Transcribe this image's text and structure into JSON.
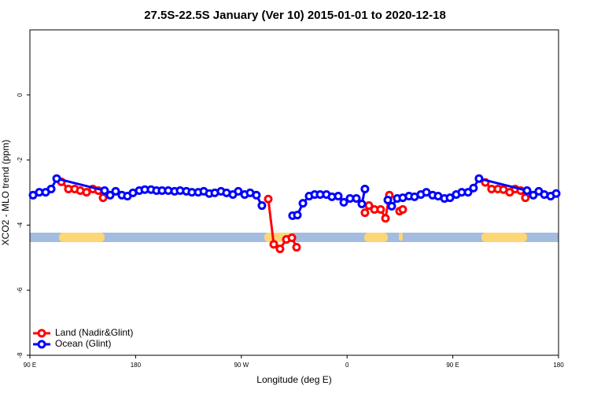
{
  "chart_data": {
    "type": "line",
    "title": "27.5S-22.5S January (Ver 10)   2015-01-01 to 2020-12-18",
    "x_label": "Longitude (deg E)",
    "y_label": "XCO2 - MLO trend (ppm)",
    "xlim": [
      90,
      540
    ],
    "xticks": [
      {
        "value": 90,
        "label": "90 E"
      },
      {
        "value": 180,
        "label": "180"
      },
      {
        "value": 270,
        "label": "90 W"
      },
      {
        "value": 360,
        "label": "0"
      },
      {
        "value": 450,
        "label": "90 E"
      },
      {
        "value": 540,
        "label": "180"
      }
    ],
    "ylim": [
      -8,
      2
    ],
    "yticks": [
      0,
      -2,
      -4,
      -6,
      -8
    ],
    "legend": "bottomleft",
    "series": [
      {
        "name": "Land (Nadir&Glint)",
        "color": "#ff0000",
        "x": [
          116.8,
          122.8,
          128.2,
          132.9,
          138.2,
          143.6,
          148.3,
          152.3,
          null,
          292.9,
          297.6,
          302.9,
          308.3,
          313.0,
          317.0,
          null,
          375.2,
          378.6,
          383.3,
          388.6,
          392.7,
          396.0,
          null,
          404.7,
          407.4,
          null,
          477.7,
          483.0,
          488.4,
          493.1,
          498.4,
          503.1,
          507.8,
          511.8
        ],
        "values": [
          -2.67,
          -2.89,
          -2.89,
          -2.94,
          -2.99,
          -2.89,
          -2.94,
          -3.16,
          null,
          -3.2,
          -4.59,
          -4.73,
          -4.44,
          -4.39,
          -4.68,
          null,
          -3.62,
          -3.4,
          -3.52,
          -3.52,
          -3.79,
          -3.08,
          null,
          -3.57,
          -3.52,
          null,
          -2.69,
          -2.89,
          -2.89,
          -2.91,
          -2.99,
          -2.89,
          -2.94,
          -3.16
        ]
      },
      {
        "name": "Ocean (Glint)",
        "color": "#0000ff",
        "x": [
          92.7,
          98.0,
          103.4,
          108.1,
          112.8,
          153.6,
          158.3,
          163.0,
          168.3,
          173.0,
          177.7,
          183.1,
          187.8,
          193.1,
          197.8,
          202.5,
          207.8,
          213.2,
          217.9,
          223.2,
          227.9,
          233.3,
          238.0,
          242.7,
          247.4,
          252.7,
          257.4,
          262.8,
          267.4,
          272.8,
          277.5,
          282.8,
          287.5,
          null,
          313.6,
          317.7,
          322.4,
          327.7,
          332.4,
          337.1,
          342.4,
          347.1,
          352.5,
          357.2,
          362.5,
          367.9,
          372.6,
          375.2,
          null,
          394.7,
          398.0,
          402.7,
          407.4,
          412.7,
          417.4,
          422.8,
          427.5,
          432.8,
          437.5,
          442.9,
          447.6,
          452.9,
          457.6,
          463.0,
          467.6,
          472.3,
          513.2,
          518.5,
          523.2,
          527.9,
          533.3,
          538.0
        ],
        "values": [
          -3.08,
          -2.99,
          -2.99,
          -2.89,
          -2.57,
          -2.94,
          -3.08,
          -2.96,
          -3.08,
          -3.11,
          -3.01,
          -2.94,
          -2.91,
          -2.91,
          -2.94,
          -2.94,
          -2.94,
          -2.96,
          -2.94,
          -2.96,
          -2.99,
          -2.99,
          -2.96,
          -3.03,
          -3.01,
          -2.96,
          -3.01,
          -3.06,
          -2.96,
          -3.06,
          -3.01,
          -3.08,
          -3.4,
          null,
          -3.71,
          -3.69,
          -3.33,
          -3.11,
          -3.06,
          -3.06,
          -3.06,
          -3.13,
          -3.11,
          -3.3,
          -3.18,
          -3.18,
          -3.35,
          -2.89,
          null,
          -3.23,
          -3.42,
          -3.18,
          -3.16,
          -3.11,
          -3.13,
          -3.06,
          -2.99,
          -3.08,
          -3.11,
          -3.18,
          -3.16,
          -3.06,
          -2.99,
          -2.99,
          -2.86,
          -2.57,
          -2.94,
          -3.08,
          -2.96,
          -3.06,
          -3.11,
          -3.03
        ]
      }
    ]
  }
}
